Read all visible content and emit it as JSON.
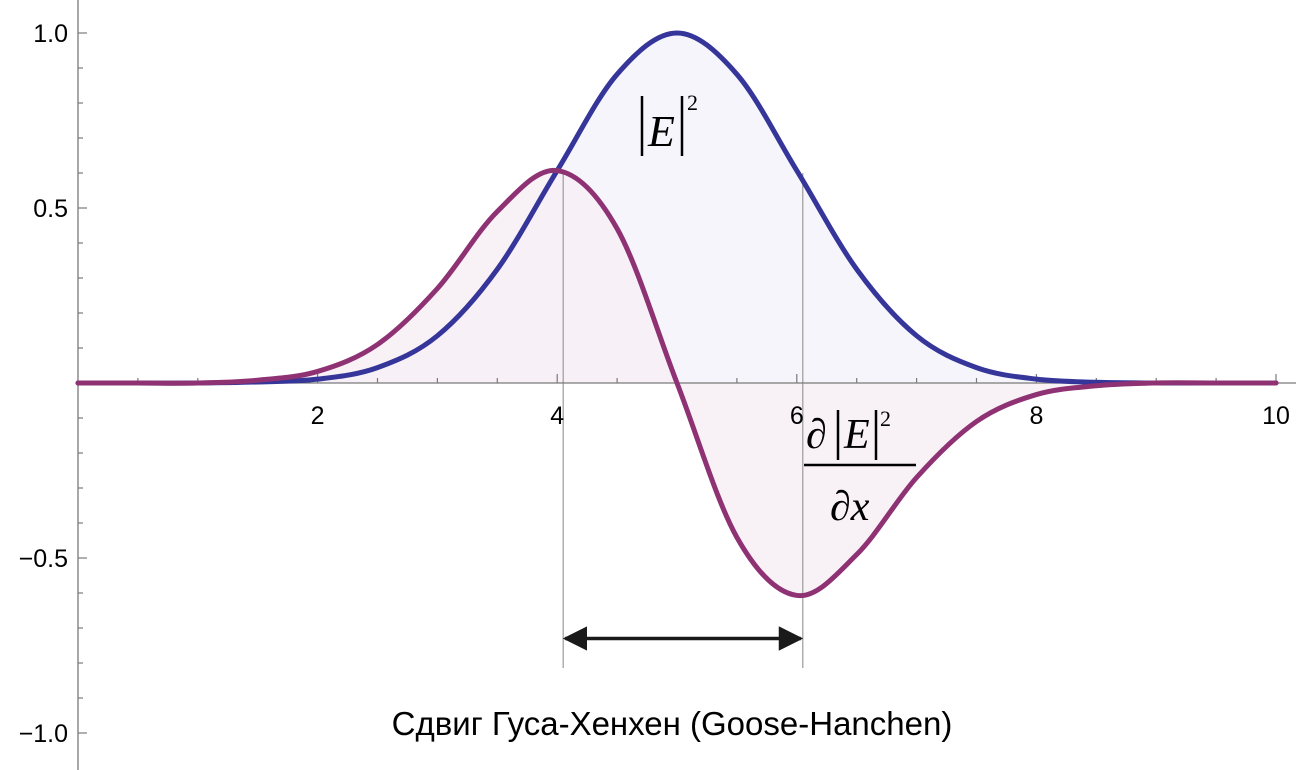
{
  "chart_data": {
    "type": "area",
    "title": "",
    "xlabel": "",
    "ylabel": "",
    "xlim": [
      0,
      10
    ],
    "ylim": [
      -1.08,
      1.08
    ],
    "grid": false,
    "x_ticks": [
      2,
      4,
      6,
      8,
      10
    ],
    "x_tick_labels": [
      "2",
      "4",
      "6",
      "8",
      "10"
    ],
    "y_ticks": [
      1.0,
      0.5,
      -0.5,
      -1.0
    ],
    "y_tick_labels": [
      "1.0",
      "0.5",
      "−0.5",
      "−1.0"
    ],
    "series": [
      {
        "name": "|E|²",
        "color": "#35359a",
        "fill": "#f3f3fa",
        "x": [
          0,
          0.5,
          1,
          1.5,
          2,
          2.5,
          3,
          3.5,
          4,
          4.5,
          5,
          5.5,
          6,
          6.5,
          7,
          7.5,
          8,
          8.5,
          9,
          9.5,
          10
        ],
        "y": [
          0.0,
          0.0,
          0.0,
          0.003,
          0.011,
          0.044,
          0.135,
          0.325,
          0.607,
          0.882,
          1.0,
          0.882,
          0.607,
          0.325,
          0.135,
          0.044,
          0.011,
          0.002,
          0.0,
          0.0,
          0.0
        ]
      },
      {
        "name": "∂|E|²/∂x",
        "color": "#8e3274",
        "fill": "#f7eff5",
        "x": [
          0,
          0.5,
          1,
          1.5,
          2,
          2.5,
          3,
          3.5,
          4,
          4.5,
          5,
          5.5,
          6,
          6.5,
          7,
          7.5,
          8,
          8.5,
          9,
          9.5,
          10
        ],
        "y": [
          0.0,
          0.0,
          0.0,
          0.008,
          0.033,
          0.11,
          0.27,
          0.49,
          0.607,
          0.441,
          0.0,
          -0.441,
          -0.607,
          -0.49,
          -0.27,
          -0.11,
          -0.033,
          -0.008,
          0.0,
          0.0,
          0.0
        ]
      }
    ],
    "annotations": {
      "curve_label_1": {
        "base": "E",
        "exp": "2"
      },
      "curve_label_2": {
        "partial": "∂",
        "base": "E",
        "exp": "2",
        "denom": "∂x"
      },
      "shift_arrow": {
        "x_from": 4.05,
        "x_to": 6.05,
        "y": -0.73
      },
      "caption": "Сдвиг Гуса-Хенхен (Goose-Hanchen)"
    }
  }
}
